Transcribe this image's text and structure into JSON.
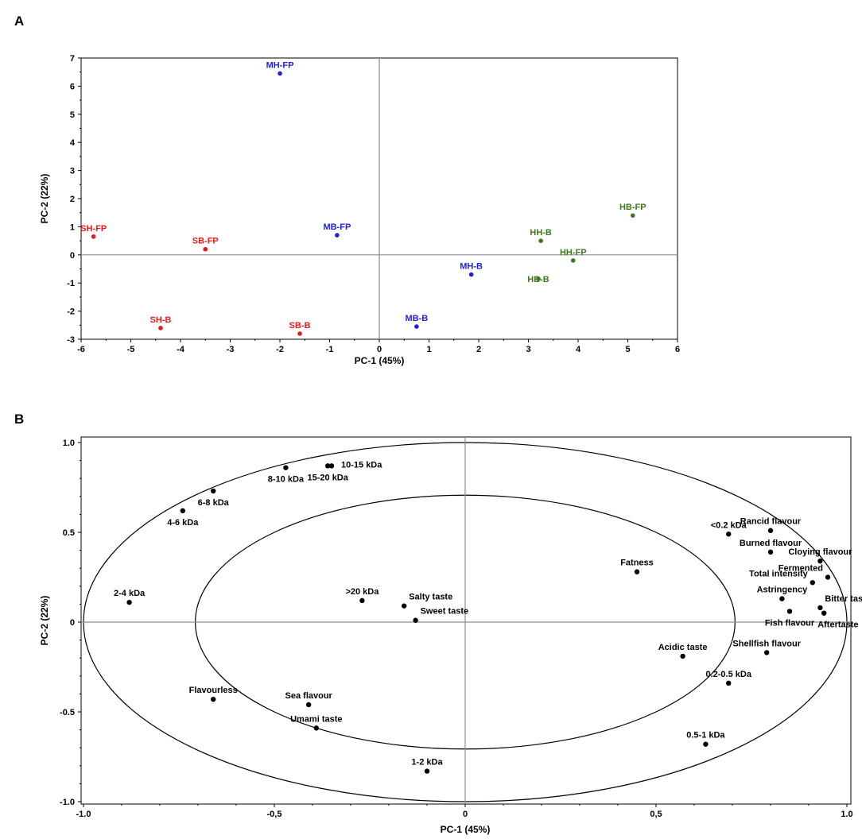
{
  "colors": {
    "S": "#e8191b",
    "M": "#1f1fe0",
    "H": "#3d7a1f",
    "loading": "#000000"
  },
  "chart_data": [
    {
      "panel": "A",
      "type": "scatter",
      "title": "",
      "xlabel": "PC-1 (45%)",
      "ylabel": "PC-2 (22%)",
      "xlim": [
        -6,
        6
      ],
      "ylim": [
        -3,
        7
      ],
      "xticks": [
        -6,
        -5,
        -4,
        -3,
        -2,
        -1,
        0,
        1,
        2,
        3,
        4,
        5,
        6
      ],
      "yticks": [
        -3,
        -2,
        -1,
        0,
        1,
        2,
        3,
        4,
        5,
        6,
        7
      ],
      "xtick_labels": [
        "-6",
        "-5",
        "-4",
        "-3",
        "-2",
        "-1",
        "0",
        "1",
        "2",
        "3",
        "4",
        "5",
        "6"
      ],
      "ytick_labels": [
        "-3",
        "-2",
        "-1",
        "0",
        "1",
        "2",
        "3",
        "4",
        "5",
        "6",
        "7"
      ],
      "points": [
        {
          "label": "MH-FP",
          "x": -2.0,
          "y": 6.45,
          "group": "M",
          "pos": "above"
        },
        {
          "label": "SH-FP",
          "x": -5.75,
          "y": 0.65,
          "group": "S",
          "pos": "above"
        },
        {
          "label": "SB-FP",
          "x": -3.5,
          "y": 0.2,
          "group": "S",
          "pos": "above"
        },
        {
          "label": "MB-FP",
          "x": -0.85,
          "y": 0.7,
          "group": "M",
          "pos": "above"
        },
        {
          "label": "SH-B",
          "x": -4.4,
          "y": -2.6,
          "group": "S",
          "pos": "above"
        },
        {
          "label": "SB-B",
          "x": -1.6,
          "y": -2.8,
          "group": "S",
          "pos": "above"
        },
        {
          "label": "MB-B",
          "x": 0.75,
          "y": -2.55,
          "group": "M",
          "pos": "above"
        },
        {
          "label": "MH-B",
          "x": 1.85,
          "y": -0.7,
          "group": "M",
          "pos": "above"
        },
        {
          "label": "HH-B",
          "x": 3.25,
          "y": 0.5,
          "group": "H",
          "pos": "above"
        },
        {
          "label": "HH-FP",
          "x": 3.9,
          "y": -0.2,
          "group": "H",
          "pos": "above"
        },
        {
          "label": "HB-B",
          "x": 3.2,
          "y": -0.85,
          "group": "H",
          "pos": "on"
        },
        {
          "label": "HB-FP",
          "x": 5.1,
          "y": 1.4,
          "group": "H",
          "pos": "above"
        }
      ]
    },
    {
      "panel": "B",
      "type": "scatter",
      "title": "",
      "xlabel": "PC-1 (45%)",
      "ylabel": "PC-2 (22%)",
      "xlim": [
        -1.0,
        1.0
      ],
      "ylim": [
        -1.0,
        1.0
      ],
      "xticks": [
        -1.0,
        -0.5,
        0,
        0.5,
        1.0
      ],
      "yticks": [
        -1.0,
        -0.5,
        0,
        0.5,
        1.0
      ],
      "xtick_labels": [
        "-1.0",
        "-0,5",
        "0",
        "0,5",
        "1.0"
      ],
      "ytick_labels": [
        "-1.0",
        "-0.5",
        "0",
        "0.5",
        "1.0"
      ],
      "ellipses": [
        1.0,
        0.707
      ],
      "points": [
        {
          "label": "10-15 kDa",
          "x": -0.35,
          "y": 0.87,
          "pos": "right"
        },
        {
          "label": "8-10 kDa",
          "x": -0.47,
          "y": 0.86,
          "pos": "below"
        },
        {
          "label": "15-20 kDa",
          "x": -0.36,
          "y": 0.87,
          "pos": "below"
        },
        {
          "label": "6-8 kDa",
          "x": -0.66,
          "y": 0.73,
          "pos": "below"
        },
        {
          "label": "4-6 kDa",
          "x": -0.74,
          "y": 0.62,
          "pos": "below"
        },
        {
          "label": "2-4 kDa",
          "x": -0.88,
          "y": 0.11,
          "pos": "above"
        },
        {
          "label": ">20 kDa",
          "x": -0.27,
          "y": 0.12,
          "pos": "above"
        },
        {
          "label": "Salty taste",
          "x": -0.16,
          "y": 0.09,
          "pos": "aboveright"
        },
        {
          "label": "Sweet taste",
          "x": -0.13,
          "y": 0.01,
          "pos": "aboveright"
        },
        {
          "label": "Flavourless",
          "x": -0.66,
          "y": -0.43,
          "pos": "above"
        },
        {
          "label": "Sea flavour",
          "x": -0.41,
          "y": -0.46,
          "pos": "above"
        },
        {
          "label": "Umami taste",
          "x": -0.39,
          "y": -0.59,
          "pos": "above"
        },
        {
          "label": "1-2 kDa",
          "x": -0.1,
          "y": -0.83,
          "pos": "above"
        },
        {
          "label": "Fatness",
          "x": 0.45,
          "y": 0.28,
          "pos": "above"
        },
        {
          "label": "<0.2 kDa",
          "x": 0.69,
          "y": 0.49,
          "pos": "above"
        },
        {
          "label": "Rancid flavour",
          "x": 0.8,
          "y": 0.51,
          "pos": "above"
        },
        {
          "label": "Burned flavour",
          "x": 0.8,
          "y": 0.39,
          "pos": "above"
        },
        {
          "label": "Cloying flavour",
          "x": 0.93,
          "y": 0.34,
          "pos": "above"
        },
        {
          "label": "Fermented",
          "x": 0.95,
          "y": 0.25,
          "pos": "aboveleft"
        },
        {
          "label": "Total intensity",
          "x": 0.91,
          "y": 0.22,
          "pos": "aboveleft"
        },
        {
          "label": "Astringency",
          "x": 0.83,
          "y": 0.13,
          "pos": "above"
        },
        {
          "label": "Bitter taste",
          "x": 0.93,
          "y": 0.08,
          "pos": "aboveright"
        },
        {
          "label": "Fish flavour",
          "x": 0.85,
          "y": 0.06,
          "pos": "below"
        },
        {
          "label": "Aftertaste",
          "x": 0.94,
          "y": 0.05,
          "pos": "belowright"
        },
        {
          "label": "Shellfish flavour",
          "x": 0.79,
          "y": -0.17,
          "pos": "above"
        },
        {
          "label": "Acidic taste",
          "x": 0.57,
          "y": -0.19,
          "pos": "above"
        },
        {
          "label": "0.2-0.5 kDa",
          "x": 0.69,
          "y": -0.34,
          "pos": "above"
        },
        {
          "label": "0.5-1 kDa",
          "x": 0.63,
          "y": -0.68,
          "pos": "above"
        }
      ]
    }
  ]
}
